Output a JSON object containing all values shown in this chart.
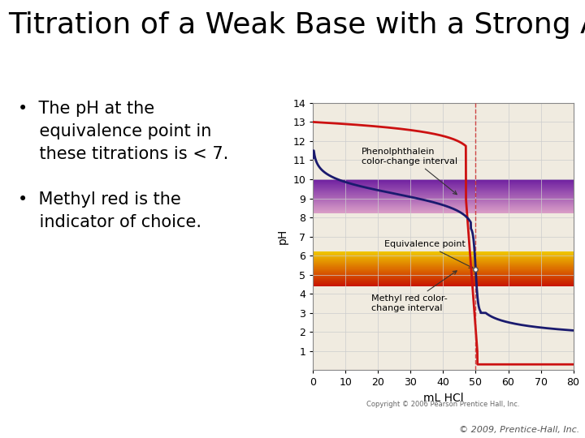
{
  "title": "Titration of a Weak Base with a Strong Acid",
  "title_fontsize": 26,
  "bullet1_line1": "•  The pH at the",
  "bullet1_line2": "    equivalence point in",
  "bullet1_line3": "    these titrations is < 7.",
  "bullet2_line1": "•  Methyl red is the",
  "bullet2_line2": "    indicator of choice.",
  "bullet_fontsize": 15,
  "xlabel": "mL HCl",
  "ylabel": "pH",
  "xlim": [
    0,
    80
  ],
  "ylim": [
    0,
    14
  ],
  "xticks": [
    0,
    10,
    20,
    30,
    40,
    50,
    60,
    70,
    80
  ],
  "yticks": [
    1,
    2,
    3,
    4,
    5,
    6,
    7,
    8,
    9,
    10,
    11,
    12,
    13,
    14
  ],
  "equivalence_x": 50,
  "equivalence_y": 5.28,
  "phenolphthalein_low": 8.2,
  "phenolphthalein_high": 10.0,
  "methyl_red_low": 4.4,
  "methyl_red_high": 6.2,
  "curve_color": "#1a1a6e",
  "red_curve_color": "#cc1111",
  "equiv_line_color": "#cc2222",
  "background_color": "#f0ebe0",
  "grid_color": "#cccccc",
  "copyright_text": "Copyright © 2006 Pearson Prentice Hall, Inc.",
  "footer_text": "© 2009, Prentice-Hall, Inc.",
  "annotation_fontsize": 8,
  "axis_fontsize": 9
}
